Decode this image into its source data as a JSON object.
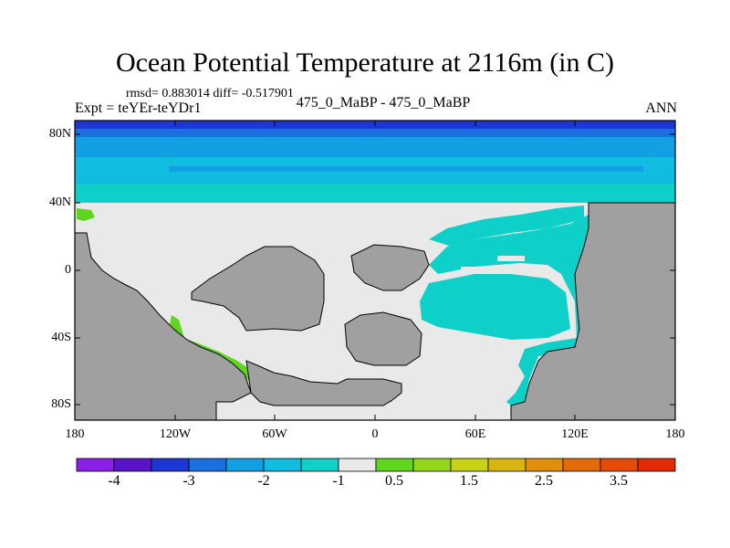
{
  "title": "Ocean Potential Temperature at 2116m (in C)",
  "stats": "rmsd= 0.883014  diff= -0.517901",
  "left_label": "Expt = teYEr-teYDr1",
  "center_label": "475_0_MaBP - 475_0_MaBP",
  "right_label": "ANN",
  "map": {
    "lat_ticks": [
      "80N",
      "40N",
      "0",
      "40S",
      "80S"
    ],
    "lon_ticks": [
      "180",
      "120W",
      "60W",
      "0",
      "60E",
      "120E",
      "180"
    ],
    "land_color": "#a0a0a0",
    "near_zero_color": "#e9e9e9"
  },
  "colorbar": {
    "colors": [
      "#8a1fe6",
      "#5a14c8",
      "#1c37d4",
      "#1b6fe0",
      "#139fe3",
      "#10bde0",
      "#0ed0c8",
      "#e9e9e9",
      "#5fd61e",
      "#93d61a",
      "#c7d314",
      "#d9b510",
      "#e08e0b",
      "#e36a09",
      "#e44a08",
      "#e22a06"
    ],
    "labels": [
      "-4",
      "-3",
      "-2",
      "-1",
      "0.5",
      "1.5",
      "2.5",
      "3.5"
    ]
  }
}
